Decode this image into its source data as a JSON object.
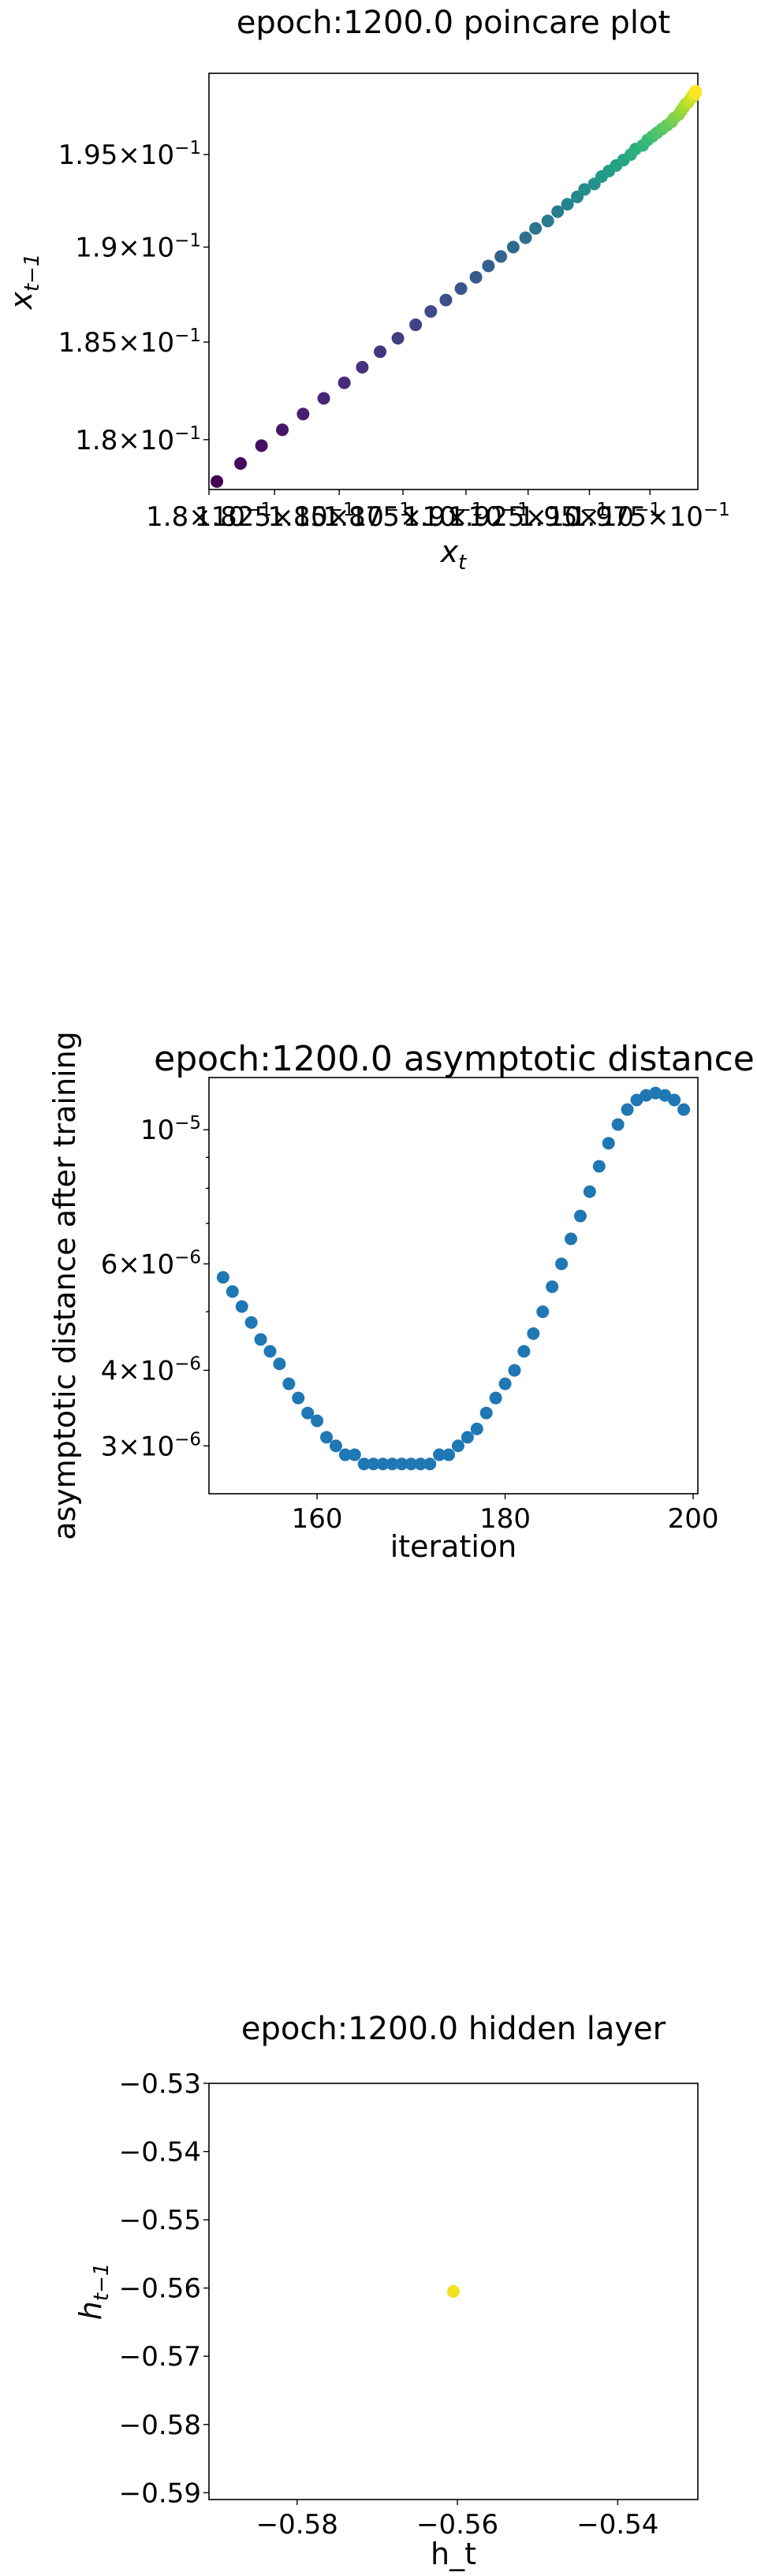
{
  "chart_data": [
    {
      "type": "scatter",
      "title": "epoch:1200.0 poincare plot",
      "xlabel": "x_t",
      "ylabel": "x_{t-1}",
      "x_scale": "log",
      "y_scale": "log",
      "xlim": [
        0.18,
        0.1995
      ],
      "ylim": [
        0.1775,
        0.1995
      ],
      "colormap": "viridis",
      "color_by": "iteration",
      "x_ticks": [
        {
          "value": 0.18,
          "mantissa": "1.8",
          "exponent": "−1"
        },
        {
          "value": 0.1825,
          "mantissa": "1.825",
          "exponent": "−1"
        },
        {
          "value": 0.185,
          "mantissa": "1.85",
          "exponent": "−1"
        },
        {
          "value": 0.1875,
          "mantissa": "1.875",
          "exponent": "−1"
        },
        {
          "value": 0.19,
          "mantissa": "1.9",
          "exponent": "−1"
        },
        {
          "value": 0.1925,
          "mantissa": "1.925",
          "exponent": "−1"
        },
        {
          "value": 0.195,
          "mantissa": "1.95",
          "exponent": "−1"
        },
        {
          "value": 0.1975,
          "mantissa": "1.975",
          "exponent": "−1"
        }
      ],
      "y_ticks": [
        {
          "value": 0.18,
          "mantissa": "1.8",
          "exponent": "−1"
        },
        {
          "value": 0.185,
          "mantissa": "1.85",
          "exponent": "−1"
        },
        {
          "value": 0.19,
          "mantissa": "1.9",
          "exponent": "−1"
        },
        {
          "value": 0.195,
          "mantissa": "1.95",
          "exponent": "−1"
        }
      ],
      "x": [
        0.1803,
        0.1812,
        0.182,
        0.1828,
        0.1836,
        0.1844,
        0.1852,
        0.1859,
        0.1866,
        0.1873,
        0.188,
        0.1886,
        0.1892,
        0.1898,
        0.1904,
        0.1909,
        0.1914,
        0.1919,
        0.1924,
        0.1928,
        0.1933,
        0.1937,
        0.1941,
        0.1945,
        0.1948,
        0.1952,
        0.1955,
        0.1958,
        0.1961,
        0.1964,
        0.1967,
        0.1969,
        0.1972,
        0.1974,
        0.1976,
        0.1978,
        0.198,
        0.1982,
        0.1984,
        0.1985,
        0.1987,
        0.1988,
        0.1989,
        0.199,
        0.1991,
        0.1992,
        0.1993,
        0.1993,
        0.1994,
        0.1994
      ],
      "y": [
        0.1779,
        0.1788,
        0.1797,
        0.1805,
        0.1813,
        0.1821,
        0.1829,
        0.1837,
        0.1845,
        0.1852,
        0.1859,
        0.1866,
        0.1872,
        0.1878,
        0.1884,
        0.189,
        0.1895,
        0.19,
        0.1905,
        0.191,
        0.1914,
        0.1919,
        0.1923,
        0.1927,
        0.1931,
        0.1934,
        0.1938,
        0.1941,
        0.1944,
        0.1947,
        0.195,
        0.1953,
        0.1955,
        0.1958,
        0.196,
        0.1962,
        0.1964,
        0.1966,
        0.1968,
        0.197,
        0.1972,
        0.1974,
        0.1976,
        0.1978,
        0.1979,
        0.1981,
        0.1982,
        0.1983,
        0.1984,
        0.1985
      ]
    },
    {
      "type": "scatter",
      "title": "epoch:1200.0 asymptotic distance",
      "xlabel": "iteration",
      "ylabel": "asymptotic distance after training",
      "y_scale": "log",
      "xlim": [
        148.5,
        200.5
      ],
      "ylim": [
        2.5e-06,
        1.22e-05
      ],
      "color": "#1f77b4",
      "x_ticks": [
        160,
        180,
        200
      ],
      "y_ticks": [
        {
          "value": 1e-05,
          "mantissa": "",
          "base": "10",
          "exponent": "−5"
        },
        {
          "value": 6e-06,
          "mantissa": "6",
          "base": "10",
          "exponent": "−6"
        },
        {
          "value": 4e-06,
          "mantissa": "4",
          "base": "10",
          "exponent": "−6"
        },
        {
          "value": 3e-06,
          "mantissa": "3",
          "base": "10",
          "exponent": "−6"
        }
      ],
      "y_minor_ticks": [
        5e-06,
        7e-06,
        8e-06,
        9e-06
      ],
      "x": [
        150,
        151,
        152,
        153,
        154,
        155,
        156,
        157,
        158,
        159,
        160,
        161,
        162,
        163,
        164,
        165,
        166,
        167,
        168,
        169,
        170,
        171,
        172,
        173,
        174,
        175,
        176,
        177,
        178,
        179,
        180,
        181,
        182,
        183,
        184,
        185,
        186,
        187,
        188,
        189,
        190,
        191,
        192,
        193,
        194,
        195,
        196,
        197,
        198,
        199
      ],
      "y": [
        5.7e-06,
        5.4e-06,
        5.1e-06,
        4.8e-06,
        4.5e-06,
        4.3e-06,
        4.1e-06,
        3.8e-06,
        3.6e-06,
        3.4e-06,
        3.3e-06,
        3.1e-06,
        3e-06,
        2.9e-06,
        2.9e-06,
        2.8e-06,
        2.8e-06,
        2.8e-06,
        2.8e-06,
        2.8e-06,
        2.8e-06,
        2.8e-06,
        2.8e-06,
        2.9e-06,
        2.9e-06,
        3e-06,
        3.1e-06,
        3.2e-06,
        3.4e-06,
        3.6e-06,
        3.8e-06,
        4e-06,
        4.3e-06,
        4.6e-06,
        5e-06,
        5.5e-06,
        6e-06,
        6.6e-06,
        7.2e-06,
        7.9e-06,
        8.7e-06,
        9.5e-06,
        1.02e-05,
        1.08e-05,
        1.12e-05,
        1.14e-05,
        1.15e-05,
        1.14e-05,
        1.12e-05,
        1.08e-05
      ]
    },
    {
      "type": "scatter",
      "title": "epoch:1200.0 hidden layer",
      "xlabel": "h_t",
      "ylabel": "h_{t-1}",
      "xlim": [
        -0.591,
        -0.53
      ],
      "ylim": [
        -0.591,
        -0.53
      ],
      "color": "#f0e21e",
      "x_ticks": [
        {
          "value": -0.58,
          "label": "−0.58"
        },
        {
          "value": -0.56,
          "label": "−0.56"
        },
        {
          "value": -0.54,
          "label": "−0.54"
        }
      ],
      "y_ticks": [
        {
          "value": -0.53,
          "label": "−0.53"
        },
        {
          "value": -0.54,
          "label": "−0.54"
        },
        {
          "value": -0.55,
          "label": "−0.55"
        },
        {
          "value": -0.56,
          "label": "−0.56"
        },
        {
          "value": -0.57,
          "label": "−0.57"
        },
        {
          "value": -0.58,
          "label": "−0.58"
        },
        {
          "value": -0.59,
          "label": "−0.59"
        }
      ],
      "x": [
        -0.5605
      ],
      "y": [
        -0.5605
      ]
    }
  ]
}
